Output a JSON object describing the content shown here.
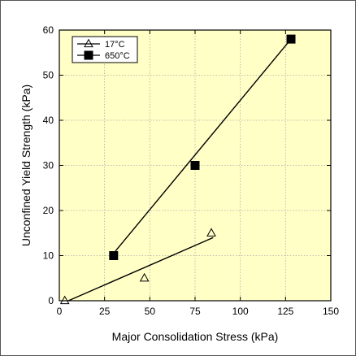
{
  "chart_data": {
    "type": "scatter",
    "title": "",
    "xlabel": "Major Consolidation Stress (kPa)",
    "ylabel": "Unconfined Yield Strength (kPa)",
    "xlim": [
      0,
      150
    ],
    "ylim": [
      0,
      60
    ],
    "xticks": [
      0,
      25,
      50,
      75,
      100,
      125,
      150
    ],
    "yticks": [
      0,
      10,
      20,
      30,
      40,
      50,
      60
    ],
    "plot_background": "#ffffc6",
    "grid": true,
    "legend_position": "top-left",
    "series": [
      {
        "name": "17°C",
        "marker": "open-triangle",
        "color": "#000000",
        "points": [
          {
            "x": 3,
            "y": 0
          },
          {
            "x": 47,
            "y": 5
          },
          {
            "x": 84,
            "y": 15
          }
        ],
        "fit_line": [
          {
            "x": 5,
            "y": 0
          },
          {
            "x": 85,
            "y": 14
          }
        ]
      },
      {
        "name": "650°C",
        "marker": "filled-square",
        "color": "#000000",
        "points": [
          {
            "x": 30,
            "y": 10
          },
          {
            "x": 75,
            "y": 30
          },
          {
            "x": 128,
            "y": 58
          }
        ],
        "fit_line": [
          {
            "x": 31,
            "y": 11
          },
          {
            "x": 128,
            "y": 58
          }
        ]
      }
    ]
  }
}
